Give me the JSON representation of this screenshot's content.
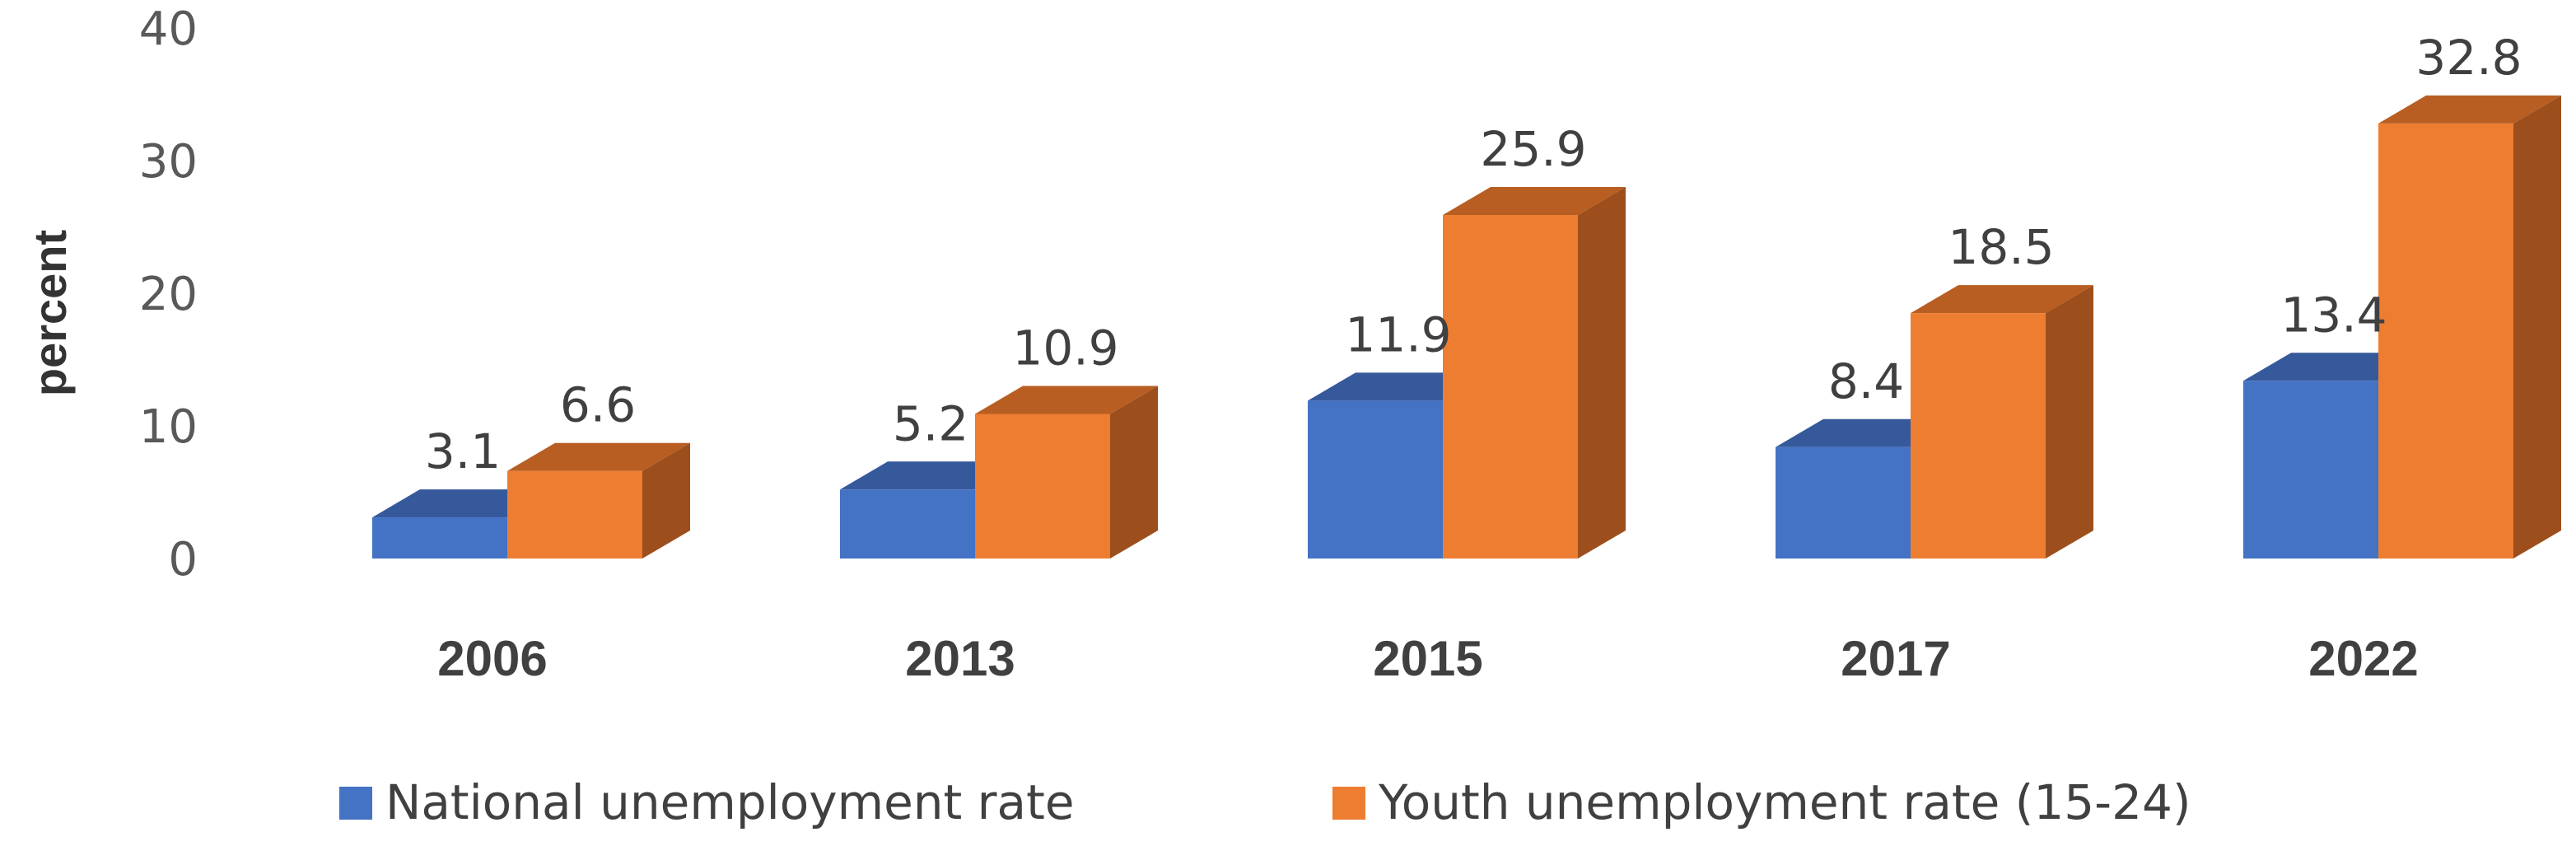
{
  "chart_data": {
    "type": "bar",
    "style": "3d-clustered-column",
    "ylabel": "percent",
    "xlabel": "",
    "title": "",
    "ylim": [
      0,
      40
    ],
    "yticks": [
      0,
      10,
      20,
      30,
      40
    ],
    "categories": [
      "2006",
      "2013",
      "2015",
      "2017",
      "2022"
    ],
    "series": [
      {
        "name": "National unemployment rate",
        "values": [
          3.1,
          5.2,
          11.9,
          8.4,
          13.4
        ],
        "color": "#4472C4",
        "side_color": "#2E4F8C",
        "top_color": "#36599C"
      },
      {
        "name": "Youth unemployment rate (15-24)",
        "values": [
          6.6,
          10.9,
          25.9,
          18.5,
          32.8
        ],
        "color": "#ED7D31",
        "side_color": "#9C4F1C",
        "top_color": "#B85E22"
      }
    ],
    "data_labels": true,
    "legend": "bottom",
    "grid": false
  }
}
